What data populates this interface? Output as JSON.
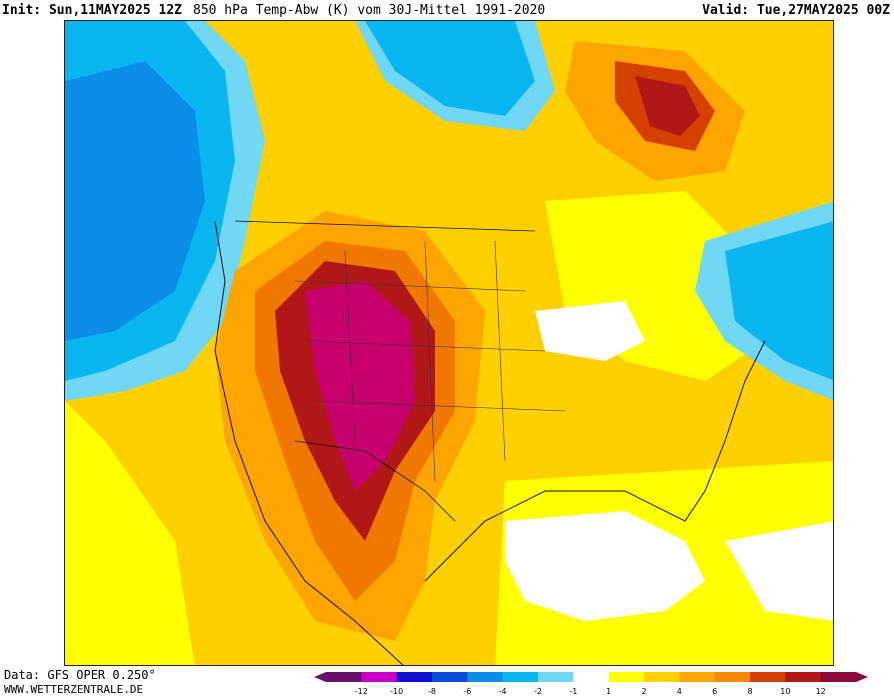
{
  "header": {
    "init": "Init: Sun,11MAY2025 12Z",
    "title": "850 hPa Temp-Abw (K) vom 30J-Mittel 1991-2020",
    "valid": "Valid: Tue,27MAY2025 00Z"
  },
  "footer": {
    "data_source": "Data: GFS OPER 0.250°",
    "site": "WWW.WETTERZENTRALE.DE"
  },
  "legend": {
    "ticks": [
      "-12",
      "-10",
      "-8",
      "-6",
      "-4",
      "-2",
      "-1",
      "1",
      "2",
      "4",
      "6",
      "8",
      "10",
      "12"
    ],
    "colors": [
      "#6a0f6a",
      "#c800c8",
      "#1010d0",
      "#0a4bd9",
      "#0a8ee8",
      "#0ab6f0",
      "#70d8f5",
      "#ffffff",
      "#ffff00",
      "#ffd000",
      "#ffa500",
      "#f58a00",
      "#d44000",
      "#b01818",
      "#8b0a3c"
    ]
  },
  "map": {
    "type": "temperature-anomaly-map",
    "region": "North America",
    "colors": {
      "warm_1": "#ffff00",
      "warm_2": "#ffd000",
      "warm_3": "#ffa500",
      "warm_4": "#f07800",
      "warm_5": "#b01818",
      "warm_6": "#c8006e",
      "neutral": "#ffffff",
      "cold_1": "#70d8f5",
      "cold_2": "#0ab6f0",
      "cold_3": "#0a8ee8"
    }
  }
}
